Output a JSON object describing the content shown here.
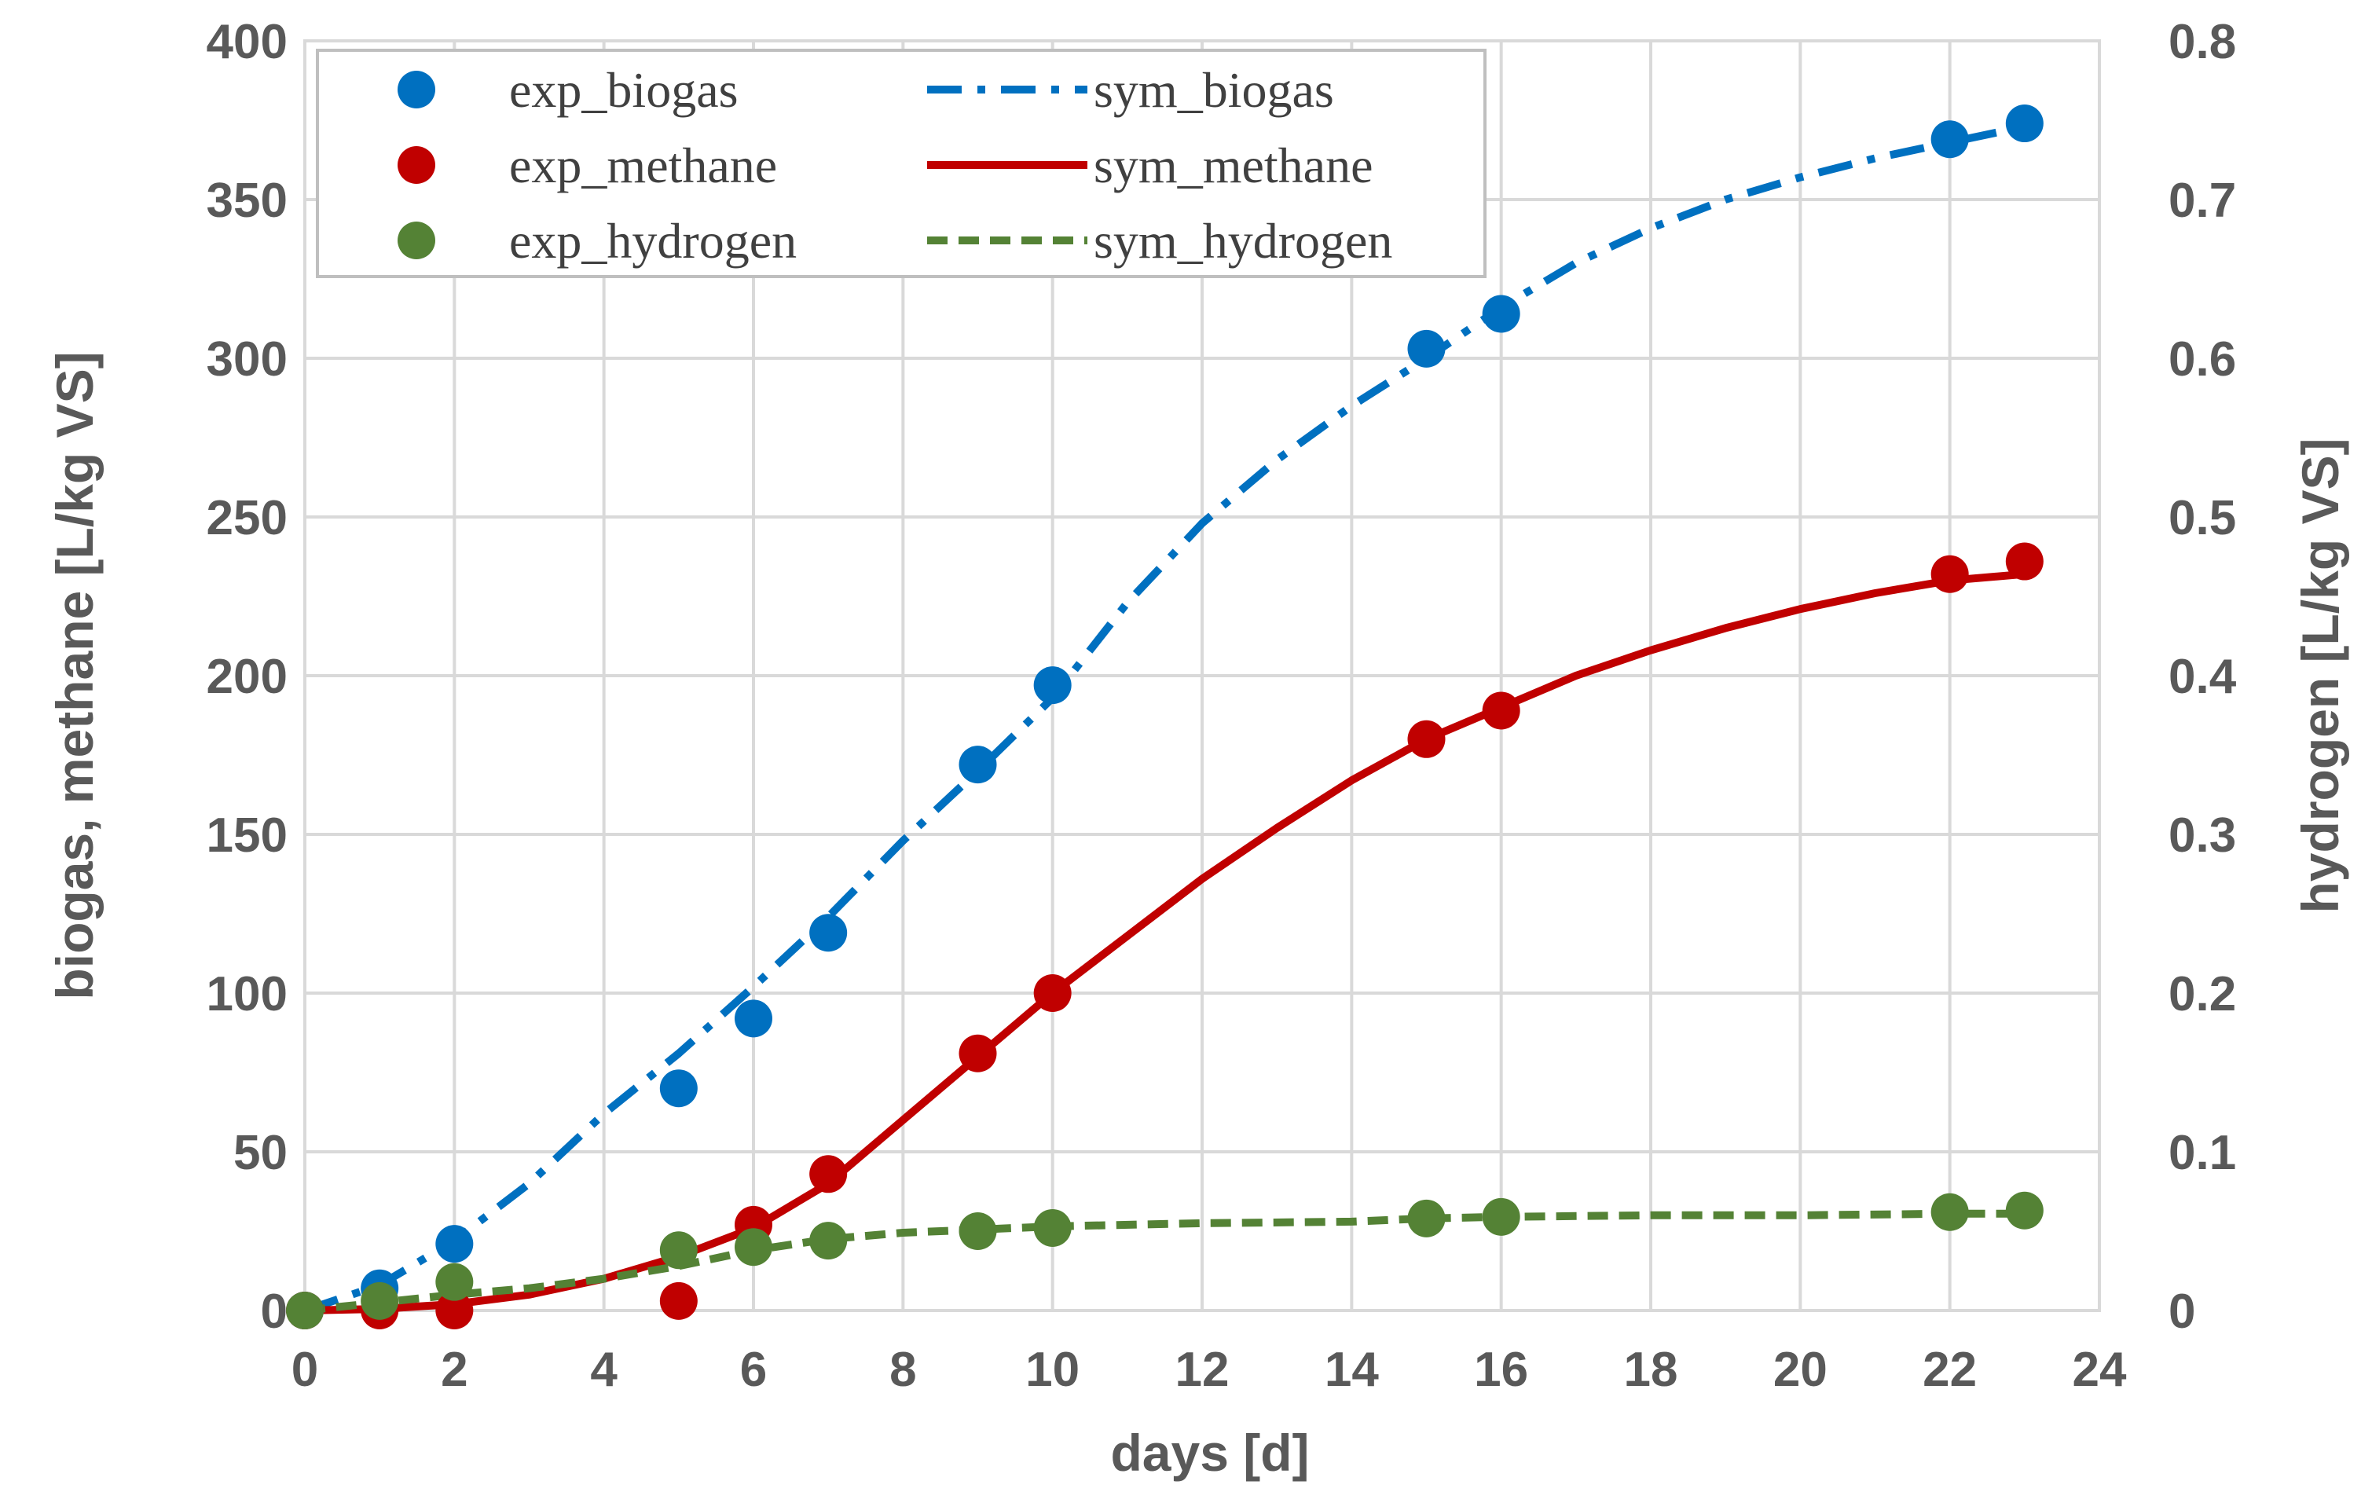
{
  "chart_data": {
    "type": "scatter",
    "xlabel": "days [d]",
    "ylabel": "biogas, methane [L/kg VS]",
    "y2label": "hydrogen [L/kg VS]",
    "xlim": [
      0,
      24
    ],
    "ylim": [
      0,
      400
    ],
    "y2lim": [
      0,
      0.8
    ],
    "grid": true,
    "legend_position": "top-left",
    "x_ticks": [
      "0",
      "2",
      "4",
      "6",
      "8",
      "10",
      "12",
      "14",
      "16",
      "18",
      "20",
      "22",
      "24"
    ],
    "y_ticks": [
      "0",
      "50",
      "100",
      "150",
      "200",
      "250",
      "300",
      "350",
      "400"
    ],
    "y2_ticks": [
      "0",
      "0.1",
      "0.2",
      "0.3",
      "0.4",
      "0.5",
      "0.6",
      "0.7",
      "0.8"
    ],
    "colors": {
      "biogas": "#0070c0",
      "methane": "#c00000",
      "hydrogen": "#548235",
      "grid": "#d9d9d9",
      "text": "#595959"
    },
    "series": [
      {
        "name": "exp_biogas",
        "kind": "points",
        "axis": "left",
        "color": "#0070c0",
        "x": [
          0,
          1,
          2,
          5,
          6,
          7,
          9,
          10,
          15,
          16,
          22,
          23
        ],
        "y": [
          0,
          7,
          21,
          70,
          92,
          119,
          172,
          197,
          303,
          314,
          369,
          374
        ]
      },
      {
        "name": "exp_methane",
        "kind": "points",
        "axis": "left",
        "color": "#c00000",
        "x": [
          0,
          1,
          2,
          5,
          6,
          7,
          9,
          10,
          15,
          16,
          22,
          23
        ],
        "y": [
          0,
          0,
          0,
          3,
          27,
          43,
          81,
          100,
          180,
          189,
          232,
          236
        ]
      },
      {
        "name": "exp_hydrogen",
        "kind": "points",
        "axis": "right",
        "color": "#548235",
        "x": [
          0,
          1,
          2,
          5,
          6,
          7,
          9,
          10,
          15,
          16,
          22,
          23
        ],
        "y": [
          0,
          0.006,
          0.018,
          0.038,
          0.04,
          0.044,
          0.05,
          0.052,
          0.058,
          0.059,
          0.062,
          0.063
        ]
      },
      {
        "name": "sym_biogas",
        "kind": "line",
        "style": "dashdot",
        "axis": "left",
        "color": "#0070c0",
        "x": [
          0,
          1,
          2,
          3,
          4,
          5,
          6,
          7,
          8,
          9,
          10,
          11,
          12,
          13,
          14,
          15,
          16,
          17,
          18,
          19,
          20,
          21,
          22,
          23
        ],
        "y": [
          0,
          8,
          22,
          40,
          62,
          81,
          102,
          124,
          148,
          170,
          193,
          223,
          248,
          268,
          285,
          300,
          316,
          330,
          341,
          350,
          357,
          363,
          368,
          373
        ]
      },
      {
        "name": "sym_methane",
        "kind": "line",
        "style": "solid",
        "axis": "left",
        "color": "#c00000",
        "x": [
          0,
          1,
          2,
          3,
          4,
          5,
          6,
          7,
          8,
          9,
          10,
          11,
          12,
          13,
          14,
          15,
          16,
          17,
          18,
          19,
          20,
          21,
          22,
          23
        ],
        "y": [
          0,
          0.5,
          2,
          5,
          10,
          17,
          26,
          40,
          60,
          80,
          100,
          118,
          136,
          152,
          167,
          180,
          190,
          200,
          208,
          215,
          221,
          226,
          230,
          232
        ]
      },
      {
        "name": "sym_hydrogen",
        "kind": "line",
        "style": "dashed",
        "axis": "right",
        "color": "#548235",
        "x": [
          0,
          1,
          2,
          3,
          4,
          5,
          6,
          7,
          8,
          9,
          10,
          12,
          14,
          15,
          16,
          18,
          20,
          22,
          23
        ],
        "y": [
          0,
          0.005,
          0.01,
          0.014,
          0.02,
          0.028,
          0.038,
          0.045,
          0.049,
          0.051,
          0.053,
          0.055,
          0.056,
          0.058,
          0.059,
          0.06,
          0.06,
          0.061,
          0.061
        ]
      }
    ]
  }
}
